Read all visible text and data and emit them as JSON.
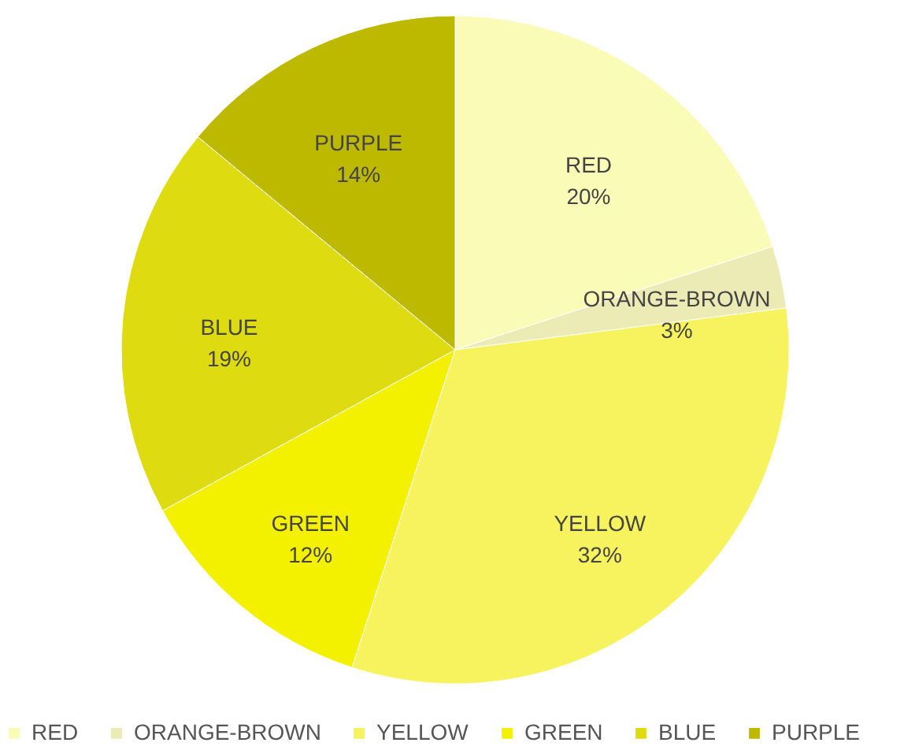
{
  "chart_data": {
    "type": "pie",
    "categories": [
      "RED",
      "ORANGE-BROWN",
      "YELLOW",
      "GREEN",
      "BLUE",
      "PURPLE"
    ],
    "values": [
      20,
      3,
      32,
      12,
      19,
      14
    ],
    "value_labels": [
      "20%",
      "3%",
      "32%",
      "12%",
      "19%",
      "14%"
    ],
    "colors": [
      "#fbfbb8",
      "#ecebb6",
      "#f6f35e",
      "#f4f100",
      "#dedb10",
      "#bdb800"
    ],
    "legend": "bottom"
  }
}
